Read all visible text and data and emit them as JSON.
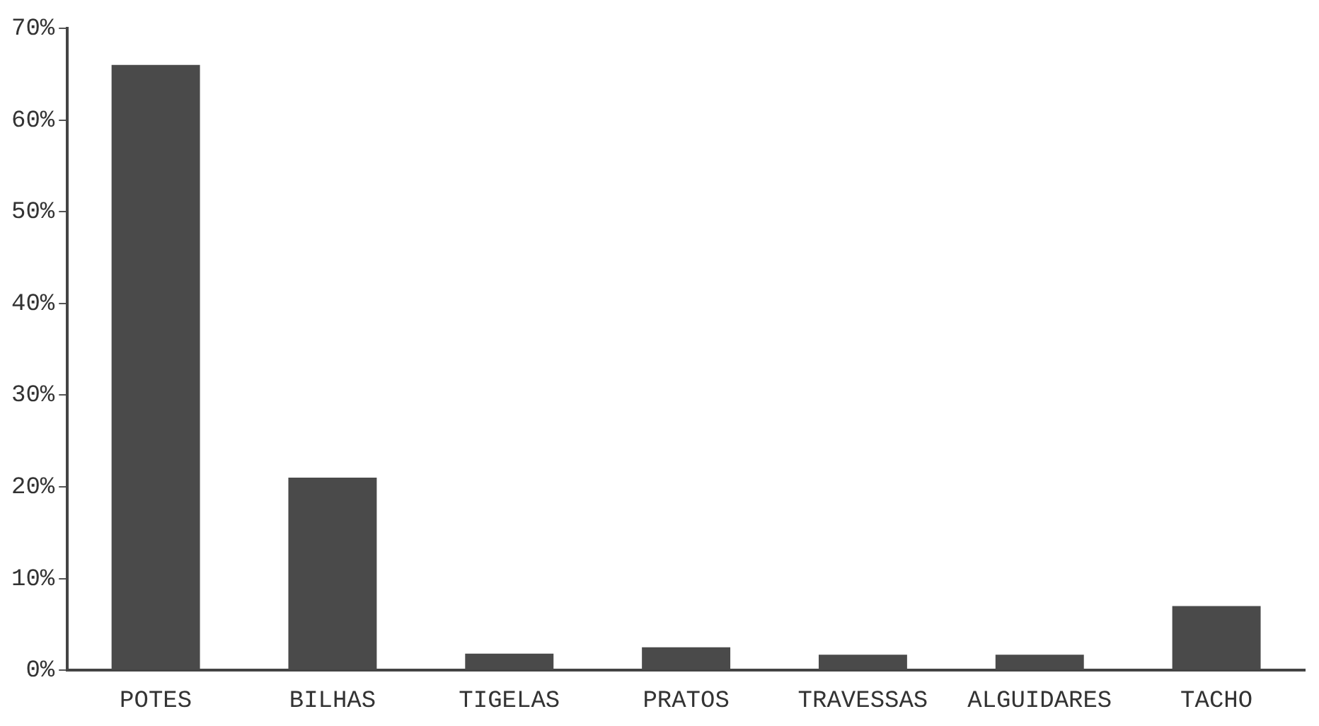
{
  "chart_data": {
    "type": "bar",
    "categories": [
      "POTES",
      "BILHAS",
      "TIGELAS",
      "PRATOS",
      "TRAVESSAS",
      "ALGUIDARES",
      "TACHO"
    ],
    "values": [
      66,
      21,
      1.8,
      2.5,
      1.7,
      1.7,
      7
    ],
    "color": "#4a4a4a",
    "ylim": [
      0,
      70
    ],
    "yticks": [
      {
        "value": 0,
        "label": "0%"
      },
      {
        "value": 10,
        "label": "10%"
      },
      {
        "value": 20,
        "label": "20%"
      },
      {
        "value": 30,
        "label": "30%"
      },
      {
        "value": 40,
        "label": "40%"
      },
      {
        "value": 50,
        "label": "50%"
      },
      {
        "value": 60,
        "label": "60%"
      },
      {
        "value": 70,
        "label": "70%"
      }
    ],
    "grid": false,
    "legend": false
  }
}
